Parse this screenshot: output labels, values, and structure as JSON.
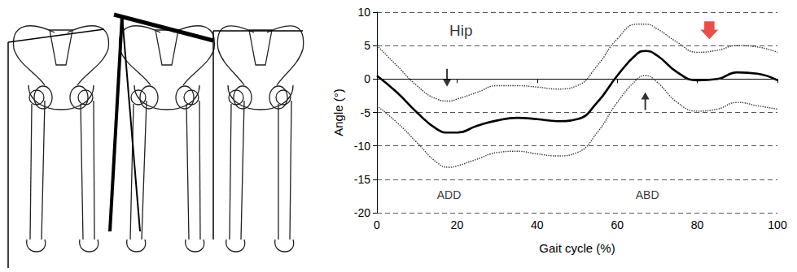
{
  "chart_data": {
    "type": "line",
    "xlabel": "Gait cycle (%)",
    "ylabel": "Angle (°)",
    "xlim": [
      0,
      100
    ],
    "xticks": [
      0,
      20,
      40,
      60,
      80,
      100
    ],
    "ylim": [
      -20,
      10
    ],
    "yticks": [
      -20,
      -15,
      -10,
      -5,
      0,
      5,
      10
    ],
    "grid": true,
    "x": [
      0,
      5,
      10,
      15,
      18,
      20,
      25,
      30,
      35,
      40,
      45,
      50,
      55,
      60,
      65,
      67,
      70,
      75,
      80,
      85,
      90,
      95,
      100
    ],
    "series": [
      {
        "color": "#000000",
        "line_style": "solid",
        "marker": "none",
        "values": [
          0.5,
          -2,
          -5,
          -7.5,
          -8,
          -8,
          -7,
          -6.2,
          -5.8,
          -6,
          -6.3,
          -6,
          -3.5,
          0.5,
          3.8,
          4.2,
          3.5,
          1,
          -0.2,
          0,
          1,
          0.8,
          -0.2
        ]
      },
      {
        "color": "#333333",
        "line_style": "dotted",
        "marker": "none",
        "values": [
          5,
          2,
          -1,
          -3,
          -3.3,
          -3,
          -2,
          -1,
          -1,
          -1.2,
          -1.5,
          -1,
          2,
          6,
          8.2,
          8.2,
          7.5,
          5.5,
          4,
          4.3,
          5,
          4.8,
          4
        ]
      },
      {
        "color": "#333333",
        "line_style": "dotted",
        "marker": "none",
        "values": [
          -4,
          -6.5,
          -9.5,
          -12.5,
          -13.2,
          -13,
          -12,
          -11,
          -10.8,
          -11.2,
          -11.5,
          -11,
          -8,
          -3.5,
          0,
          0.5,
          -0.5,
          -3.5,
          -4.8,
          -4.5,
          -3.5,
          -4,
          -4.5
        ]
      }
    ],
    "annotations": [
      {
        "text": "Hip",
        "x": 21,
        "y": 7.3
      },
      {
        "text": "ADD",
        "x": 18,
        "y": -17.3
      },
      {
        "text": "ABD",
        "x": 67.5,
        "y": -17.3
      }
    ],
    "arrows": [
      {
        "x": 17.5,
        "y": 0.2,
        "direction": "down",
        "color": "#000000"
      },
      {
        "x": 67,
        "y": -3.3,
        "direction": "up",
        "color": "#000000"
      },
      {
        "x": 83,
        "y": 7.3,
        "direction": "down",
        "color": "#e8201a"
      }
    ]
  }
}
